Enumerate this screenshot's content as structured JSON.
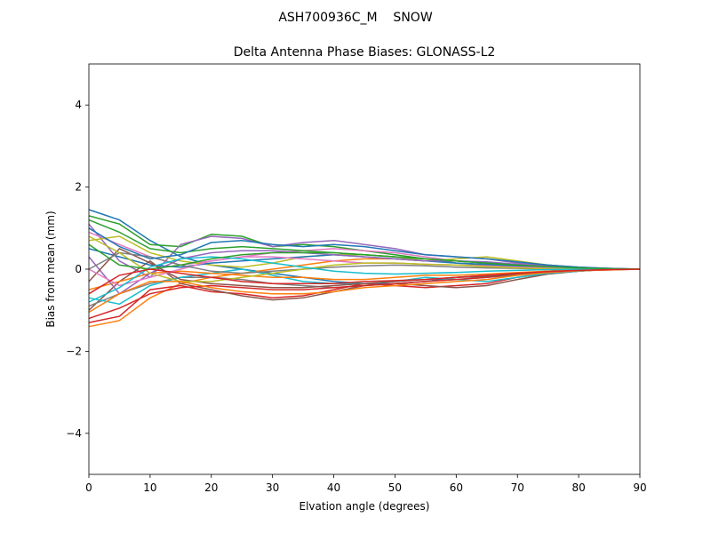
{
  "chart_data": {
    "type": "line",
    "suptitle": "ASH700936C_M    SNOW",
    "title": "Delta Antenna Phase Biases: GLONASS-L2",
    "xlabel": "Elvation angle (degrees)",
    "ylabel": "Bias from mean (mm)",
    "xlim": [
      0,
      90
    ],
    "ylim": [
      -5,
      5
    ],
    "xticks": [
      0,
      10,
      20,
      30,
      40,
      50,
      60,
      70,
      80,
      90
    ],
    "yticks": [
      -4,
      -2,
      0,
      2,
      4
    ],
    "ytick_labels": [
      "−4",
      "−2",
      "0",
      "2",
      "4"
    ],
    "legend": "none",
    "grid": false,
    "x": [
      0,
      5,
      10,
      15,
      20,
      25,
      30,
      35,
      40,
      45,
      50,
      55,
      60,
      65,
      70,
      75,
      80,
      85,
      90
    ],
    "series_colors": [
      "#1f77b4",
      "#ff7f0e",
      "#2ca02c",
      "#d62728",
      "#9467bd",
      "#8c564b",
      "#e377c2",
      "#7f7f7f",
      "#bcbd22",
      "#17becf"
    ],
    "series": [
      {
        "values": [
          1.45,
          1.2,
          0.7,
          0.3,
          0.1,
          0.0,
          -0.1,
          -0.2,
          -0.3,
          -0.35,
          -0.35,
          -0.3,
          -0.2,
          -0.15,
          -0.1,
          -0.05,
          0.0,
          0.0,
          0.0
        ]
      },
      {
        "values": [
          -1.4,
          -1.25,
          -0.7,
          -0.35,
          -0.2,
          -0.1,
          0.0,
          0.1,
          0.2,
          0.25,
          0.25,
          0.2,
          0.2,
          0.15,
          0.1,
          0.05,
          0.0,
          0.0,
          0.0
        ]
      },
      {
        "values": [
          1.3,
          1.1,
          0.6,
          0.55,
          0.85,
          0.8,
          0.55,
          0.6,
          0.55,
          0.45,
          0.35,
          0.25,
          0.15,
          0.1,
          0.05,
          0.03,
          0.0,
          0.0,
          0.0
        ]
      },
      {
        "values": [
          -1.3,
          -1.15,
          -0.5,
          -0.4,
          -0.55,
          -0.6,
          -0.7,
          -0.65,
          -0.5,
          -0.35,
          -0.4,
          -0.45,
          -0.4,
          -0.35,
          -0.2,
          -0.1,
          -0.05,
          0.0,
          0.0
        ]
      },
      {
        "values": [
          1.1,
          0.2,
          -0.2,
          0.6,
          0.8,
          0.75,
          0.55,
          0.65,
          0.7,
          0.6,
          0.5,
          0.35,
          0.3,
          0.25,
          0.15,
          0.1,
          0.05,
          0.02,
          0.0
        ]
      },
      {
        "values": [
          -1.0,
          -0.3,
          0.2,
          -0.35,
          -0.5,
          -0.65,
          -0.75,
          -0.7,
          -0.55,
          -0.4,
          -0.35,
          -0.4,
          -0.45,
          -0.4,
          -0.25,
          -0.12,
          -0.05,
          0.0,
          0.0
        ]
      },
      {
        "values": [
          0.9,
          0.6,
          0.3,
          0.1,
          0.2,
          0.3,
          0.4,
          0.45,
          0.5,
          0.45,
          0.4,
          0.3,
          0.2,
          0.15,
          0.1,
          0.05,
          0.02,
          0.0,
          0.0
        ]
      },
      {
        "values": [
          -0.9,
          -0.6,
          -0.35,
          -0.2,
          -0.2,
          -0.25,
          -0.35,
          -0.4,
          -0.45,
          -0.4,
          -0.35,
          -0.3,
          -0.25,
          -0.2,
          -0.15,
          -0.1,
          -0.05,
          0.0,
          0.0
        ]
      },
      {
        "values": [
          0.7,
          0.8,
          0.4,
          0.2,
          0.1,
          0.05,
          0.15,
          0.3,
          0.35,
          0.35,
          0.3,
          0.2,
          0.25,
          0.3,
          0.2,
          0.1,
          0.05,
          0.0,
          0.0
        ]
      },
      {
        "values": [
          -0.7,
          -0.85,
          -0.4,
          -0.2,
          -0.1,
          0.0,
          -0.15,
          -0.3,
          -0.35,
          -0.35,
          -0.3,
          -0.2,
          -0.25,
          -0.3,
          -0.2,
          -0.1,
          -0.05,
          0.0,
          0.0
        ]
      },
      {
        "values": [
          0.5,
          0.3,
          0.1,
          0.05,
          0.15,
          0.2,
          0.25,
          0.3,
          0.35,
          0.3,
          0.25,
          0.2,
          0.15,
          0.12,
          0.08,
          0.05,
          0.03,
          0.0,
          0.0
        ]
      },
      {
        "values": [
          -0.5,
          -0.3,
          -0.1,
          -0.05,
          -0.1,
          -0.15,
          -0.2,
          -0.2,
          -0.25,
          -0.25,
          -0.2,
          -0.15,
          -0.15,
          -0.12,
          -0.08,
          -0.05,
          -0.03,
          0.0,
          0.0
        ]
      },
      {
        "values": [
          1.2,
          0.9,
          0.5,
          0.4,
          0.5,
          0.55,
          0.5,
          0.45,
          0.4,
          0.35,
          0.3,
          0.25,
          0.2,
          0.15,
          0.1,
          0.06,
          0.03,
          0.0,
          0.0
        ]
      },
      {
        "values": [
          -1.2,
          -0.95,
          -0.6,
          -0.45,
          -0.4,
          -0.45,
          -0.5,
          -0.5,
          -0.45,
          -0.4,
          -0.35,
          -0.3,
          -0.25,
          -0.2,
          -0.12,
          -0.06,
          -0.03,
          0.0,
          0.0
        ]
      },
      {
        "values": [
          0.3,
          -0.6,
          -0.1,
          0.25,
          0.4,
          0.45,
          0.45,
          0.4,
          0.35,
          0.3,
          0.25,
          0.2,
          0.2,
          0.18,
          0.12,
          0.08,
          0.04,
          0.02,
          0.0
        ]
      },
      {
        "values": [
          -0.3,
          0.5,
          0.15,
          -0.25,
          -0.35,
          -0.4,
          -0.45,
          -0.45,
          -0.4,
          -0.35,
          -0.3,
          -0.25,
          -0.2,
          -0.18,
          -0.12,
          -0.08,
          -0.04,
          -0.02,
          0.0
        ]
      },
      {
        "values": [
          0.0,
          -0.4,
          -0.2,
          0.0,
          0.2,
          0.3,
          0.3,
          0.25,
          0.2,
          0.15,
          0.15,
          0.12,
          0.1,
          0.08,
          0.05,
          0.03,
          0.02,
          0.0,
          0.0
        ]
      },
      {
        "values": [
          0.0,
          0.4,
          0.3,
          0.1,
          -0.05,
          -0.1,
          -0.05,
          0.0,
          0.05,
          0.08,
          0.1,
          0.08,
          0.05,
          0.03,
          0.02,
          0.0,
          0.0,
          0.0,
          0.0
        ]
      },
      {
        "values": [
          0.8,
          0.4,
          -0.1,
          -0.3,
          -0.3,
          -0.2,
          -0.1,
          0.0,
          0.1,
          0.15,
          0.15,
          0.12,
          0.1,
          0.06,
          0.03,
          0.01,
          0.0,
          0.0,
          0.0
        ]
      },
      {
        "values": [
          -0.8,
          -0.45,
          0.05,
          0.25,
          0.3,
          0.25,
          0.15,
          0.05,
          -0.05,
          -0.1,
          -0.12,
          -0.1,
          -0.08,
          -0.05,
          -0.03,
          -0.01,
          0.0,
          0.0,
          0.0
        ]
      },
      {
        "values": [
          1.0,
          0.55,
          0.25,
          0.35,
          0.65,
          0.7,
          0.6,
          0.55,
          0.6,
          0.55,
          0.45,
          0.35,
          0.3,
          0.25,
          0.18,
          0.1,
          0.05,
          0.02,
          0.0
        ]
      },
      {
        "values": [
          -1.05,
          -0.6,
          -0.3,
          -0.3,
          -0.45,
          -0.55,
          -0.6,
          -0.6,
          -0.55,
          -0.45,
          -0.4,
          -0.35,
          -0.3,
          -0.25,
          -0.15,
          -0.08,
          -0.04,
          -0.02,
          0.0
        ]
      },
      {
        "values": [
          0.6,
          0.1,
          0.0,
          0.1,
          0.25,
          0.35,
          0.4,
          0.4,
          0.4,
          0.35,
          0.3,
          0.25,
          0.2,
          0.15,
          0.1,
          0.06,
          0.03,
          0.01,
          0.0
        ]
      },
      {
        "values": [
          -0.6,
          -0.15,
          0.0,
          -0.1,
          -0.2,
          -0.3,
          -0.35,
          -0.35,
          -0.35,
          -0.3,
          -0.28,
          -0.25,
          -0.2,
          -0.15,
          -0.1,
          -0.06,
          -0.03,
          -0.01,
          0.0
        ]
      }
    ]
  }
}
